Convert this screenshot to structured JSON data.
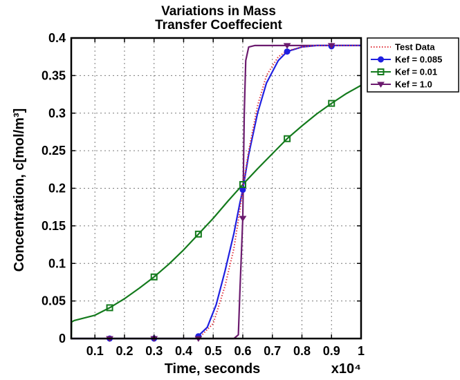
{
  "chart_data": {
    "type": "line",
    "title": [
      "Variations in Mass",
      "Transfer Coeffecient"
    ],
    "xlabel": "Time, seconds",
    "ylabel": "Concentration, c[mol/m³]",
    "x_multiplier": "x10⁴",
    "xlim": [
      0.02,
      1.0
    ],
    "ylim": [
      0,
      0.4
    ],
    "x_ticks": [
      "0.1",
      "0.2",
      "0.3",
      "0.4",
      "0.5",
      "0.6",
      "0.7",
      "0.8",
      "0.9",
      "1"
    ],
    "y_ticks": [
      "0",
      "0.05",
      "0.1",
      "0.15",
      "0.2",
      "0.25",
      "0.3",
      "0.35",
      "0.4"
    ],
    "grid": true,
    "legend_position": "outside-top-right",
    "series": [
      {
        "name": "Test Data",
        "color": "#e0303a",
        "style": "dotted",
        "marker": "none",
        "x": [
          0.02,
          0.45,
          0.5,
          0.54,
          0.57,
          0.59,
          0.6,
          0.62,
          0.65,
          0.68,
          0.72,
          0.75,
          0.8,
          0.85,
          0.9,
          1.0
        ],
        "y": [
          0,
          0,
          0.02,
          0.07,
          0.12,
          0.17,
          0.2,
          0.25,
          0.31,
          0.35,
          0.375,
          0.383,
          0.388,
          0.39,
          0.39,
          0.39
        ]
      },
      {
        "name": "Kef = 0.085",
        "color": "#1f1fe0",
        "style": "solid",
        "marker": "circle",
        "x": [
          0.02,
          0.44,
          0.48,
          0.51,
          0.54,
          0.57,
          0.59,
          0.6,
          0.62,
          0.65,
          0.68,
          0.72,
          0.75,
          0.8,
          0.85,
          0.9,
          1.0
        ],
        "y": [
          0,
          0,
          0.015,
          0.045,
          0.09,
          0.14,
          0.18,
          0.198,
          0.245,
          0.3,
          0.34,
          0.37,
          0.382,
          0.388,
          0.39,
          0.39,
          0.39
        ],
        "marker_x": [
          0.15,
          0.3,
          0.45,
          0.6,
          0.75,
          0.9
        ],
        "marker_y": [
          0,
          0,
          0.003,
          0.198,
          0.382,
          0.389
        ]
      },
      {
        "name": "Kef = 0.01",
        "color": "#137a1c",
        "style": "solid",
        "marker": "square",
        "x": [
          0.02,
          0.021,
          0.03,
          0.1,
          0.15,
          0.2,
          0.25,
          0.3,
          0.35,
          0.4,
          0.45,
          0.5,
          0.55,
          0.6,
          0.65,
          0.7,
          0.75,
          0.8,
          0.85,
          0.9,
          0.95,
          1.0
        ],
        "y": [
          0,
          0.022,
          0.024,
          0.031,
          0.041,
          0.053,
          0.067,
          0.082,
          0.099,
          0.118,
          0.139,
          0.16,
          0.183,
          0.205,
          0.226,
          0.246,
          0.266,
          0.283,
          0.299,
          0.313,
          0.326,
          0.337
        ],
        "marker_x": [
          0.15,
          0.3,
          0.45,
          0.6,
          0.75,
          0.9
        ],
        "marker_y": [
          0.041,
          0.082,
          0.139,
          0.205,
          0.266,
          0.313
        ]
      },
      {
        "name": "Kef = 1.0",
        "color": "#6b1a6e",
        "style": "solid",
        "marker": "triangle-down",
        "x": [
          0.02,
          0.57,
          0.585,
          0.59,
          0.6,
          0.605,
          0.61,
          0.62,
          0.64,
          0.7,
          1.0
        ],
        "y": [
          0,
          0,
          0.005,
          0.06,
          0.16,
          0.3,
          0.37,
          0.388,
          0.39,
          0.39,
          0.39
        ],
        "marker_x": [
          0.15,
          0.3,
          0.45,
          0.6,
          0.75,
          0.9
        ],
        "marker_y": [
          0,
          0,
          0,
          0.16,
          0.39,
          0.39
        ]
      }
    ]
  }
}
